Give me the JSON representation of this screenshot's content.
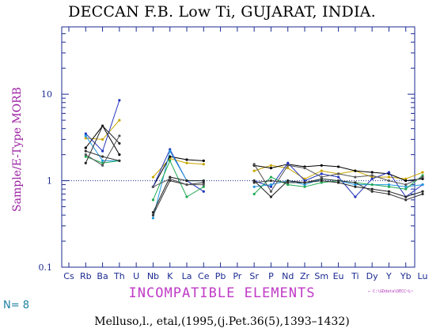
{
  "title": "DECCAN F.B. Low Ti, GUJARAT, INDIA.",
  "n_label": "N=",
  "n_value": "8",
  "file_path": "← C:\\GDdata\\DECC~L~",
  "credit": "Melluso,l., etal,(1995,(j.Pet.36(5),1393–1432)",
  "chart_data": {
    "type": "line",
    "title": "DECCAN F.B. Low Ti, GUJARAT, INDIA.",
    "xlabel": "INCOMPATIBLE ELEMENTS",
    "ylabel": "Sample/E-Type MORB",
    "yscale": "log",
    "ylim": [
      0.1,
      60
    ],
    "yticks": [
      0.1,
      1,
      10
    ],
    "ytick_labels": [
      "0.1",
      "1",
      "10"
    ],
    "reference_line": 1,
    "grid": false,
    "categories": [
      "Cs",
      "Rb",
      "Ba",
      "Th",
      "U",
      "Nb",
      "K",
      "La",
      "Ce",
      "Pb",
      "Pr",
      "Sr",
      "P",
      "Nd",
      "Zr",
      "Sm",
      "Eu",
      "Ti",
      "Dy",
      "Y",
      "Yb",
      "Lu"
    ],
    "axis_color": "#1b2a90",
    "series": [
      {
        "color": "#c8a600",
        "values": [
          null,
          3.1,
          3.0,
          5.0,
          null,
          1.1,
          1.8,
          1.6,
          1.55,
          null,
          null,
          1.3,
          1.5,
          1.4,
          1.05,
          1.3,
          1.2,
          1.3,
          1.1,
          1.1,
          1.05,
          1.25
        ]
      },
      {
        "color": "#000000",
        "values": [
          null,
          2.4,
          4.3,
          2.0,
          null,
          0.85,
          1.9,
          1.75,
          1.7,
          null,
          null,
          1.5,
          1.4,
          1.55,
          1.45,
          1.5,
          1.45,
          1.3,
          1.25,
          1.2,
          1.0,
          1.05
        ]
      },
      {
        "color": "#2233bb",
        "values": [
          null,
          3.5,
          2.2,
          8.5,
          null,
          0.85,
          2.3,
          1.0,
          0.75,
          null,
          null,
          1.0,
          0.85,
          1.6,
          1.0,
          1.2,
          1.1,
          0.65,
          1.05,
          1.25,
          0.65,
          0.9
        ]
      },
      {
        "color": "#2299dd",
        "values": [
          null,
          3.3,
          1.7,
          1.7,
          null,
          0.37,
          2.2,
          1.0,
          1.0,
          null,
          null,
          0.85,
          0.9,
          1.0,
          0.9,
          1.05,
          1.0,
          0.9,
          0.9,
          0.9,
          0.85,
          0.9
        ]
      },
      {
        "color": "#22aa55",
        "values": [
          null,
          1.9,
          1.6,
          1.7,
          null,
          0.6,
          1.7,
          0.65,
          0.85,
          null,
          null,
          0.7,
          1.1,
          0.9,
          0.85,
          0.95,
          1.0,
          0.95,
          0.9,
          0.85,
          0.8,
          1.15
        ]
      },
      {
        "color": "#222222",
        "values": [
          null,
          1.6,
          4.3,
          2.7,
          null,
          0.43,
          1.1,
          1.0,
          1.0,
          null,
          null,
          1.0,
          0.65,
          1.0,
          0.95,
          1.0,
          0.95,
          0.85,
          0.8,
          0.75,
          0.65,
          0.75
        ]
      },
      {
        "color": "#333333",
        "values": [
          null,
          2.2,
          1.9,
          1.7,
          null,
          0.4,
          1.0,
          0.9,
          0.95,
          null,
          null,
          0.95,
          1.0,
          0.95,
          0.95,
          1.05,
          1.0,
          0.95,
          0.75,
          0.7,
          0.6,
          0.7
        ]
      },
      {
        "color": "#555555",
        "values": [
          null,
          2.0,
          1.5,
          3.3,
          null,
          0.85,
          1.05,
          0.9,
          0.9,
          null,
          null,
          1.55,
          0.75,
          1.5,
          1.4,
          1.1,
          1.2,
          1.1,
          1.15,
          1.0,
          0.9,
          1.1
        ]
      }
    ]
  }
}
